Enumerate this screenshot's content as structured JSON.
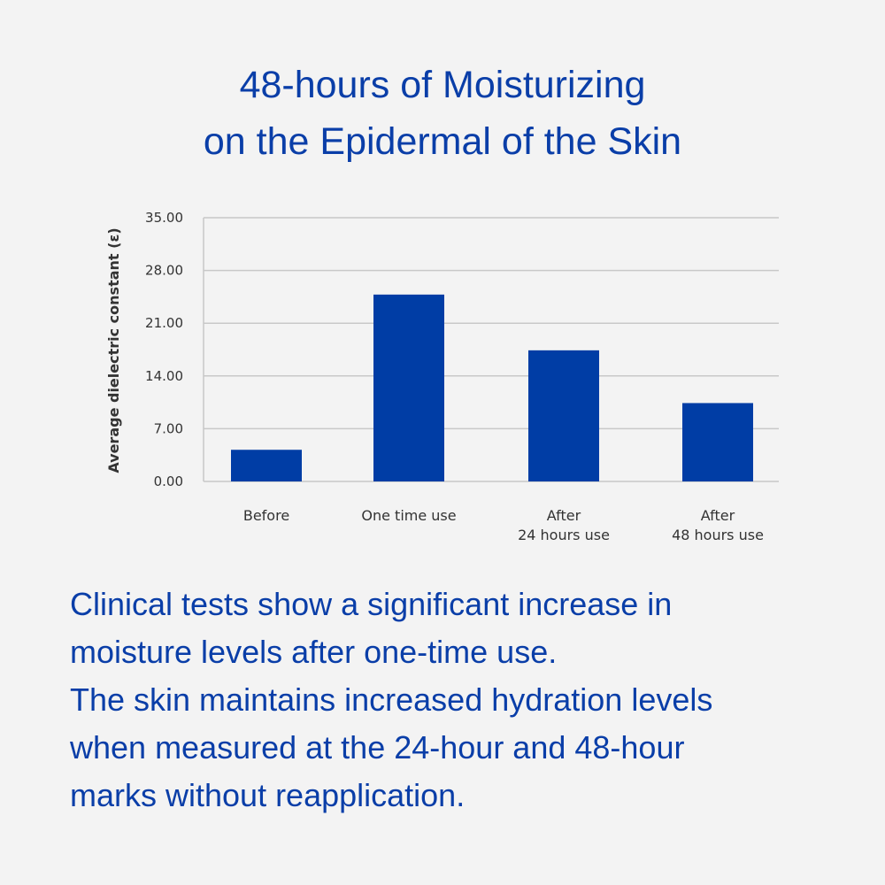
{
  "title": {
    "line1": "48-hours of Moisturizing",
    "line2": "on the Epidermal of the Skin"
  },
  "chart_data": {
    "type": "bar",
    "categories": [
      [
        "Before"
      ],
      [
        "One time use"
      ],
      [
        "After",
        "24 hours use"
      ],
      [
        "After",
        "48 hours use"
      ]
    ],
    "values": [
      4.2,
      24.8,
      17.4,
      10.4
    ],
    "ylabel": "Average dielectric constant (ε)",
    "yticks": [
      "0.00",
      "7.00",
      "14.00",
      "21.00",
      "28.00",
      "35.00"
    ],
    "ylim": [
      0,
      35
    ],
    "grid": true,
    "bar_color": "#003da5"
  },
  "description": {
    "lines": [
      "Clinical tests show a significant increase in",
      "moisture levels after one-time use.",
      "The skin maintains increased hydration levels",
      "when measured at the 24-hour and 48-hour",
      "marks without reapplication."
    ]
  }
}
